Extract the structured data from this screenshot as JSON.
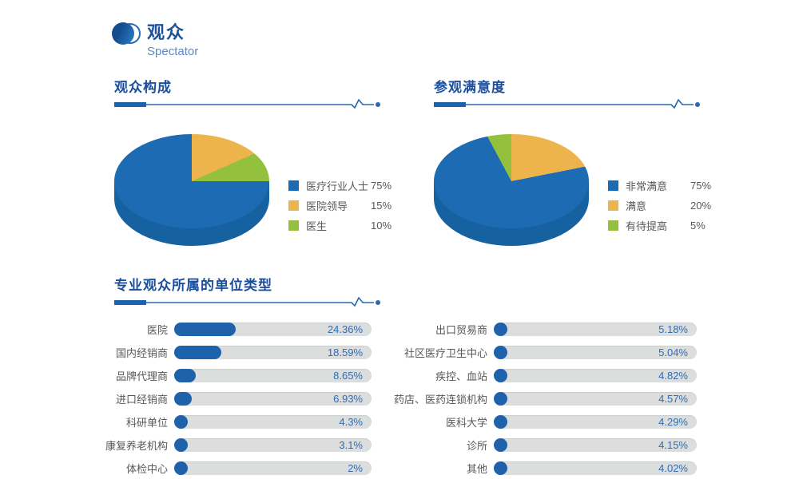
{
  "header": {
    "title": "观众",
    "subtitle": "Spectator"
  },
  "colors": {
    "blue": "#1d6bb2",
    "depth_blue": "#16619f",
    "orange": "#edb44e",
    "green": "#94c13d",
    "bar_blue": "#1f62ac",
    "track_gray": "#dcdddd",
    "label_text": "#595757",
    "value_text": "#2f6eb5",
    "title_text": "#1b4f9c",
    "subtitle_text": "#5c88c6"
  },
  "sections": {
    "composition": {
      "title": "观众构成",
      "slices_clockwise_from_top": [
        {
          "label": "医院领导",
          "pct": 15,
          "color": "orange"
        },
        {
          "label": "医生",
          "pct": 10,
          "color": "green"
        },
        {
          "label": "医疗行业人士",
          "pct": 75,
          "color": "blue"
        }
      ],
      "legend": [
        {
          "label": "医疗行业人士",
          "value": "75%",
          "color": "blue"
        },
        {
          "label": "医院领导",
          "value": "15%",
          "color": "orange"
        },
        {
          "label": "医生",
          "value": "10%",
          "color": "green"
        }
      ]
    },
    "satisfaction": {
      "title": "参观满意度",
      "slices_clockwise_from_top": [
        {
          "label": "满意",
          "pct": 20,
          "color": "orange"
        },
        {
          "label": "非常满意",
          "pct": 75,
          "color": "blue"
        },
        {
          "label": "有待提高",
          "pct": 5,
          "color": "green"
        }
      ],
      "legend": [
        {
          "label": "非常满意",
          "value": "75%",
          "color": "blue"
        },
        {
          "label": "满意",
          "value": "20%",
          "color": "orange"
        },
        {
          "label": "有待提高",
          "value": "5%",
          "color": "green"
        }
      ]
    },
    "unit_types": {
      "title": "专业观众所属的单位类型",
      "left": [
        {
          "label": "医院",
          "value": "24.36%",
          "pct": 24.36
        },
        {
          "label": "国内经销商",
          "value": "18.59%",
          "pct": 18.59
        },
        {
          "label": "品牌代理商",
          "value": "8.65%",
          "pct": 8.65
        },
        {
          "label": "进口经销商",
          "value": "6.93%",
          "pct": 6.93
        },
        {
          "label": "科研单位",
          "value": "4.3%",
          "pct": 4.3
        },
        {
          "label": "康复养老机构",
          "value": "3.1%",
          "pct": 3.1
        },
        {
          "label": "体检中心",
          "value": "2%",
          "pct": 2
        }
      ],
      "right": [
        {
          "label": "出口贸易商",
          "value": "5.18%",
          "pct": 5.18
        },
        {
          "label": "社区医疗卫生中心",
          "value": "5.04%",
          "pct": 5.04
        },
        {
          "label": "疾控、血站",
          "value": "4.82%",
          "pct": 4.82
        },
        {
          "label": "药店、医药连锁机构",
          "value": "4.57%",
          "pct": 4.57
        },
        {
          "label": "医科大学",
          "value": "4.29%",
          "pct": 4.29
        },
        {
          "label": "诊所",
          "value": "4.15%",
          "pct": 4.15
        },
        {
          "label": "其他",
          "value": "4.02%",
          "pct": 4.02
        }
      ]
    }
  },
  "chart_data": [
    {
      "type": "pie",
      "title": "观众构成",
      "labels": [
        "医疗行业人士",
        "医院领导",
        "医生"
      ],
      "values": [
        75,
        15,
        10
      ],
      "unit": "%",
      "colors": [
        "#1d6bb2",
        "#edb44e",
        "#94c13d"
      ],
      "style": "3d-ellipse",
      "legend_position": "right"
    },
    {
      "type": "pie",
      "title": "参观满意度",
      "labels": [
        "非常满意",
        "满意",
        "有待提高"
      ],
      "values": [
        75,
        20,
        5
      ],
      "unit": "%",
      "colors": [
        "#1d6bb2",
        "#edb44e",
        "#94c13d"
      ],
      "style": "3d-ellipse",
      "legend_position": "right"
    },
    {
      "type": "bar",
      "title": "专业观众所属的单位类型",
      "orientation": "horizontal",
      "categories": [
        "医院",
        "国内经销商",
        "品牌代理商",
        "进口经销商",
        "科研单位",
        "康复养老机构",
        "体检中心",
        "出口贸易商",
        "社区医疗卫生中心",
        "疾控、血站",
        "药店、医药连锁机构",
        "医科大学",
        "诊所",
        "其他"
      ],
      "values": [
        24.36,
        18.59,
        8.65,
        6.93,
        4.3,
        3.1,
        2,
        5.18,
        5.04,
        4.82,
        4.57,
        4.29,
        4.15,
        4.02
      ],
      "unit": "%",
      "layout": "two-columns",
      "value_labels_shown": true
    }
  ]
}
